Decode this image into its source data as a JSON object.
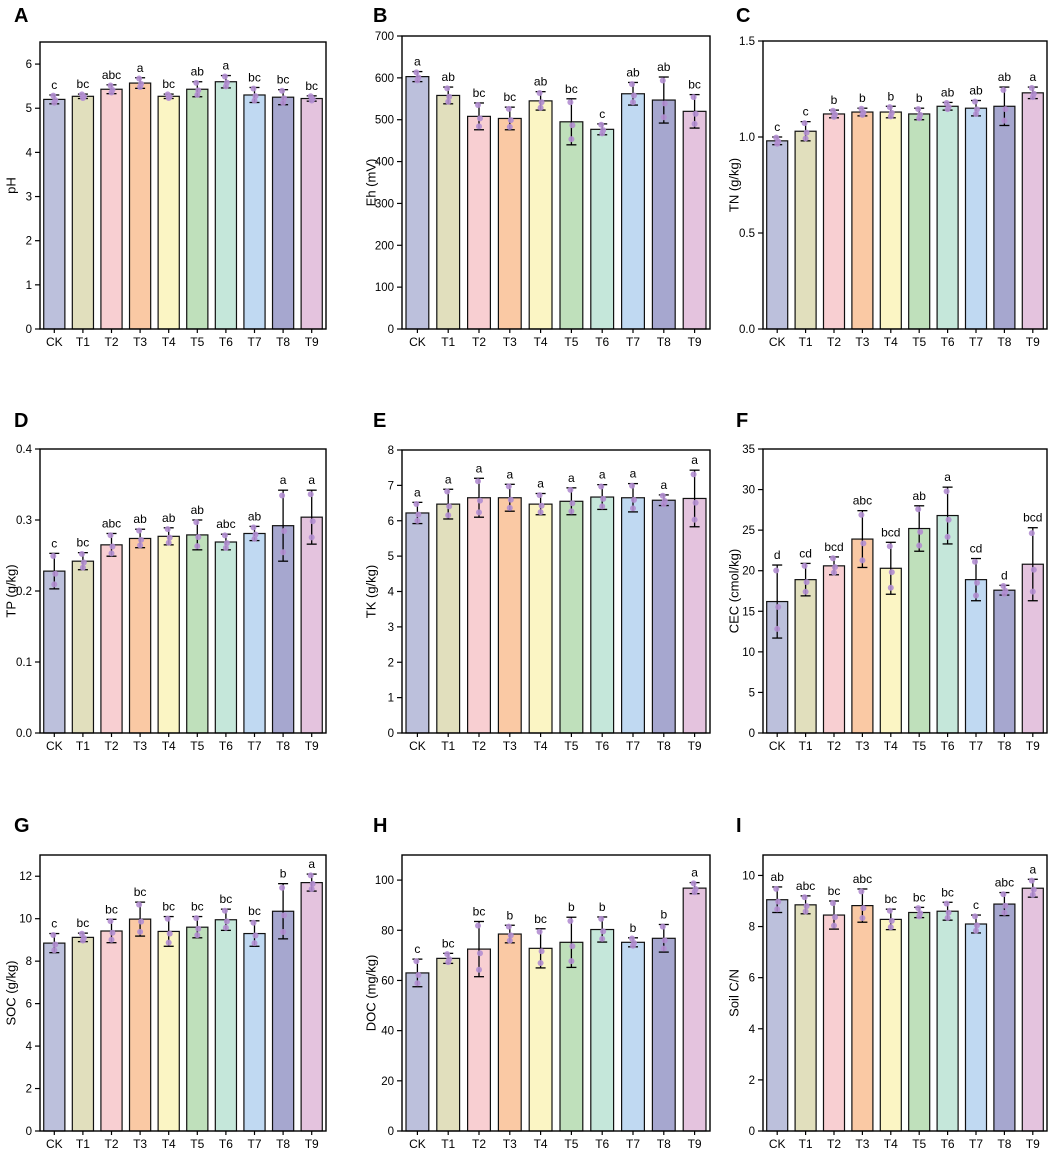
{
  "colors": [
    "#bcc0dc",
    "#e1dfbd",
    "#f8cfd2",
    "#fac9a4",
    "#fbf5c4",
    "#bfe0bb",
    "#c5e7da",
    "#c0d9f2",
    "#a6a7cf",
    "#e4c3de"
  ],
  "point_color": "#b28ed1",
  "categories": [
    "CK",
    "T1",
    "T2",
    "T3",
    "T4",
    "T5",
    "T6",
    "T7",
    "T8",
    "T9"
  ],
  "chart_data": [
    {
      "type": "bar",
      "panel": "A",
      "ylabel": "pH",
      "ylim": [
        0,
        6.5
      ],
      "ticks": [
        0,
        1,
        2,
        3,
        4,
        5,
        6
      ],
      "values": [
        5.2,
        5.27,
        5.43,
        5.57,
        5.27,
        5.43,
        5.6,
        5.3,
        5.25,
        5.22
      ],
      "errors": [
        0.1,
        0.05,
        0.1,
        0.12,
        0.05,
        0.17,
        0.14,
        0.17,
        0.17,
        0.06
      ],
      "letters": [
        "c",
        "bc",
        "abc",
        "a",
        "bc",
        "ab",
        "a",
        "bc",
        "bc",
        "bc"
      ]
    },
    {
      "type": "bar",
      "panel": "B",
      "ylabel": "Eh (mV)",
      "ylim": [
        0,
        700
      ],
      "ticks": [
        0,
        100,
        200,
        300,
        400,
        500,
        600,
        700
      ],
      "values": [
        603,
        558,
        508,
        503,
        545,
        495,
        477,
        562,
        547,
        520
      ],
      "errors": [
        12,
        20,
        32,
        27,
        22,
        55,
        13,
        27,
        55,
        40
      ],
      "letters": [
        "a",
        "ab",
        "bc",
        "bc",
        "ab",
        "bc",
        "c",
        "ab",
        "ab",
        "bc"
      ]
    },
    {
      "type": "bar",
      "panel": "C",
      "ylabel": "TN (g/kg)",
      "ylim": [
        0,
        1.5
      ],
      "ticks": [
        0.0,
        0.5,
        1.0,
        1.5
      ],
      "values": [
        0.98,
        1.03,
        1.12,
        1.13,
        1.13,
        1.12,
        1.16,
        1.15,
        1.16,
        1.23
      ],
      "errors": [
        0.02,
        0.05,
        0.02,
        0.02,
        0.03,
        0.03,
        0.02,
        0.04,
        0.1,
        0.03
      ],
      "letters": [
        "c",
        "c",
        "b",
        "b",
        "b",
        "b",
        "ab",
        "ab",
        "ab",
        "a"
      ]
    },
    {
      "type": "bar",
      "panel": "D",
      "ylabel": "TP (g/kg)",
      "ylim": [
        0,
        0.4
      ],
      "ticks": [
        0.0,
        0.1,
        0.2,
        0.3,
        0.4
      ],
      "values": [
        0.228,
        0.242,
        0.265,
        0.274,
        0.277,
        0.279,
        0.269,
        0.281,
        0.292,
        0.304
      ],
      "errors": [
        0.025,
        0.012,
        0.016,
        0.013,
        0.012,
        0.021,
        0.011,
        0.01,
        0.05,
        0.038
      ],
      "letters": [
        "c",
        "bc",
        "abc",
        "ab",
        "ab",
        "ab",
        "abc",
        "ab",
        "a",
        "a"
      ]
    },
    {
      "type": "bar",
      "panel": "E",
      "ylabel": "TK (g/kg)",
      "ylim": [
        0,
        8
      ],
      "ticks": [
        0,
        1,
        2,
        3,
        4,
        5,
        6,
        7,
        8
      ],
      "values": [
        6.22,
        6.47,
        6.65,
        6.65,
        6.47,
        6.55,
        6.67,
        6.65,
        6.58,
        6.63
      ],
      "errors": [
        0.3,
        0.42,
        0.55,
        0.38,
        0.3,
        0.38,
        0.35,
        0.4,
        0.15,
        0.8
      ],
      "letters": [
        "a",
        "a",
        "a",
        "a",
        "a",
        "a",
        "a",
        "a",
        "a",
        "a"
      ]
    },
    {
      "type": "bar",
      "panel": "F",
      "ylabel": "CEC (cmol/kg)",
      "ylim": [
        0,
        35
      ],
      "ticks": [
        0,
        5,
        10,
        15,
        20,
        25,
        30,
        35
      ],
      "values": [
        16.2,
        18.9,
        20.6,
        23.9,
        20.3,
        25.2,
        26.8,
        18.9,
        17.6,
        20.8
      ],
      "errors": [
        4.5,
        2.0,
        1.1,
        3.5,
        3.2,
        2.8,
        3.5,
        2.6,
        0.6,
        4.5
      ],
      "letters": [
        "d",
        "cd",
        "bcd",
        "abc",
        "bcd",
        "ab",
        "a",
        "cd",
        "d",
        "bcd"
      ]
    },
    {
      "type": "bar",
      "panel": "G",
      "ylabel": "SOC (g/kg)",
      "ylim": [
        0,
        13
      ],
      "ticks": [
        0,
        2,
        4,
        6,
        8,
        10,
        12
      ],
      "values": [
        8.85,
        9.12,
        9.42,
        9.98,
        9.4,
        9.6,
        9.95,
        9.3,
        10.35,
        11.7
      ],
      "errors": [
        0.45,
        0.2,
        0.55,
        0.8,
        0.7,
        0.5,
        0.5,
        0.6,
        1.3,
        0.4
      ],
      "letters": [
        "c",
        "bc",
        "bc",
        "bc",
        "bc",
        "bc",
        "bc",
        "bc",
        "b",
        "a"
      ]
    },
    {
      "type": "bar",
      "panel": "H",
      "ylabel": "DOC (mg/kg)",
      "ylim": [
        0,
        110
      ],
      "ticks": [
        0,
        20,
        40,
        60,
        80,
        100
      ],
      "values": [
        63,
        68.8,
        72.5,
        78.5,
        72.8,
        75.2,
        80.3,
        75.2,
        76.8,
        96.8
      ],
      "errors": [
        5.5,
        2.0,
        11.0,
        3.5,
        7.8,
        10.0,
        5.0,
        1.8,
        5.5,
        2.2
      ],
      "letters": [
        "c",
        "bc",
        "bc",
        "b",
        "bc",
        "b",
        "b",
        "b",
        "b",
        "a"
      ]
    },
    {
      "type": "bar",
      "panel": "I",
      "ylabel": "Soil C/N",
      "ylim": [
        0,
        10.8
      ],
      "ticks": [
        0,
        2,
        4,
        6,
        8,
        10
      ],
      "values": [
        9.05,
        8.85,
        8.45,
        8.82,
        8.28,
        8.55,
        8.6,
        8.1,
        8.88,
        9.5
      ],
      "errors": [
        0.5,
        0.35,
        0.55,
        0.65,
        0.4,
        0.2,
        0.35,
        0.35,
        0.45,
        0.35
      ],
      "letters": [
        "ab",
        "abc",
        "bc",
        "abc",
        "bc",
        "bc",
        "bc",
        "c",
        "abc",
        "a"
      ]
    }
  ]
}
